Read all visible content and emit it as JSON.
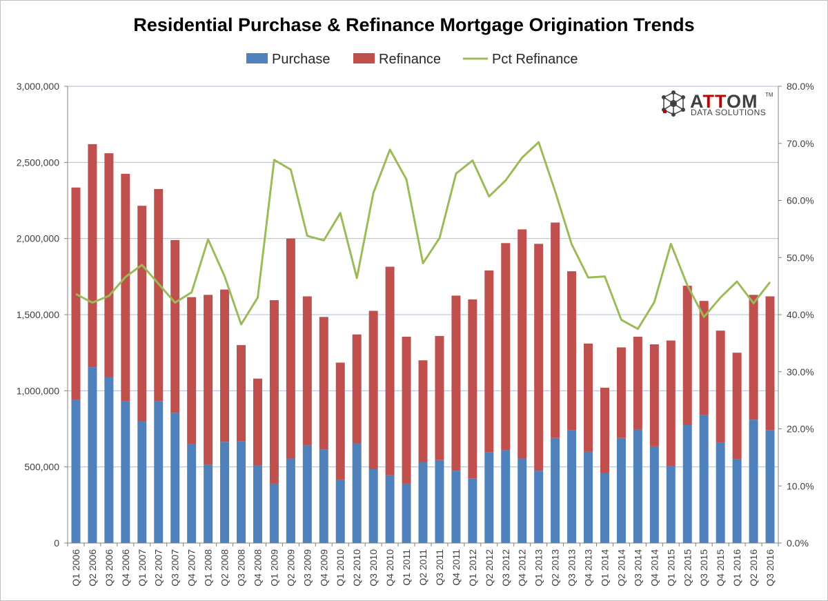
{
  "chart_data": {
    "type": "bar",
    "title": "Residential Purchase & Refinance Mortgage Origination Trends",
    "stacked": true,
    "categories": [
      "Q1 2006",
      "Q2 2006",
      "Q3 2006",
      "Q4 2006",
      "Q1 2007",
      "Q2 2007",
      "Q3 2007",
      "Q4 2007",
      "Q1 2008",
      "Q2 2008",
      "Q3 2008",
      "Q4 2008",
      "Q1 2009",
      "Q2 2009",
      "Q3 2009",
      "Q4 2009",
      "Q1 2010",
      "Q2 2010",
      "Q3 2010",
      "Q4 2010",
      "Q1 2011",
      "Q2 2011",
      "Q3 2011",
      "Q4 2011",
      "Q1 2012",
      "Q2 2012",
      "Q3 2012",
      "Q4 2012",
      "Q1 2013",
      "Q2 2013",
      "Q3 2013",
      "Q4 2013",
      "Q1 2014",
      "Q2 2014",
      "Q3 2014",
      "Q4 2014",
      "Q1 2015",
      "Q2 2015",
      "Q3 2015",
      "Q4 2015",
      "Q1 2016",
      "Q2 2016",
      "Q3 2016"
    ],
    "series": [
      {
        "name": "Purchase",
        "type": "bar",
        "axis": "left",
        "color": "#4f81bd",
        "values": [
          940000,
          1155000,
          1090000,
          930000,
          800000,
          930000,
          855000,
          650000,
          515000,
          665000,
          670000,
          510000,
          390000,
          555000,
          640000,
          615000,
          415000,
          655000,
          485000,
          445000,
          390000,
          530000,
          545000,
          475000,
          425000,
          595000,
          610000,
          555000,
          475000,
          690000,
          740000,
          600000,
          460000,
          690000,
          745000,
          635000,
          505000,
          775000,
          840000,
          660000,
          550000,
          810000,
          740000
        ]
      },
      {
        "name": "Refinance",
        "type": "bar",
        "axis": "left",
        "color": "#c0504d",
        "values": [
          1395000,
          1465000,
          1470000,
          1495000,
          1415000,
          1395000,
          1135000,
          965000,
          1115000,
          1000000,
          630000,
          570000,
          1205000,
          1445000,
          980000,
          870000,
          770000,
          715000,
          1040000,
          1370000,
          965000,
          670000,
          815000,
          1150000,
          1175000,
          1195000,
          1360000,
          1505000,
          1490000,
          1415000,
          1045000,
          710000,
          560000,
          595000,
          610000,
          670000,
          825000,
          915000,
          750000,
          735000,
          700000,
          820000,
          880000
        ]
      },
      {
        "name": "Pct Refinance",
        "type": "line",
        "axis": "right",
        "color": "#9bbb59",
        "values": [
          0.436,
          0.421,
          0.433,
          0.466,
          0.487,
          0.454,
          0.421,
          0.439,
          0.532,
          0.467,
          0.383,
          0.43,
          0.671,
          0.654,
          0.538,
          0.53,
          0.578,
          0.464,
          0.613,
          0.689,
          0.637,
          0.49,
          0.534,
          0.647,
          0.67,
          0.607,
          0.635,
          0.675,
          0.702,
          0.616,
          0.523,
          0.465,
          0.467,
          0.391,
          0.375,
          0.422,
          0.524,
          0.451,
          0.396,
          0.43,
          0.458,
          0.42,
          0.457
        ]
      }
    ],
    "y_left": {
      "min": 0,
      "max": 3000000,
      "step": 500000,
      "tick_labels": [
        "0",
        "500,000",
        "1,000,000",
        "1,500,000",
        "2,000,000",
        "2,500,000",
        "3,000,000"
      ]
    },
    "y_right": {
      "min": 0,
      "max": 0.8,
      "step": 0.1,
      "tick_labels": [
        "0.0%",
        "10.0%",
        "20.0%",
        "30.0%",
        "40.0%",
        "50.0%",
        "60.0%",
        "70.0%",
        "80.0%"
      ]
    },
    "grid": "horizontal",
    "legend": "top-center",
    "legend_items": [
      "Purchase",
      "Refinance",
      "Pct Refinance"
    ]
  },
  "logo": {
    "name_before": "A",
    "name_accent": "TT",
    "name_after": "OM",
    "tm": "TM",
    "subtitle": "DATA SOLUTIONS",
    "icon": "attom-network-icon",
    "accent_color": "#c00000"
  }
}
